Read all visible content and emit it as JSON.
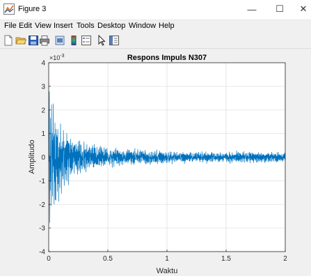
{
  "window": {
    "title": "Figure 3",
    "buttons": {
      "minimize": "—",
      "maximize": "☐",
      "close": "✕"
    }
  },
  "menu": {
    "items": [
      {
        "label": "File"
      },
      {
        "label": "Edit"
      },
      {
        "label": "View"
      },
      {
        "label": "Insert"
      },
      {
        "label": "Tools"
      },
      {
        "label": "Desktop"
      },
      {
        "label": "Window"
      },
      {
        "label": "Help"
      }
    ]
  },
  "toolbar": {
    "icons": [
      "new-figure-icon",
      "open-file-icon",
      "save-icon",
      "print-icon",
      "link-plot-icon",
      "colorbar-icon",
      "legend-icon",
      "pointer-icon",
      "property-inspector-icon"
    ]
  },
  "colors": {
    "series": "#0072bd",
    "grid": "#e0e0e0",
    "axes": "#262626"
  },
  "chart_data": {
    "type": "line",
    "title": "Respons Impuls N307",
    "xlabel": "Waktu",
    "ylabel": "Amplitudo",
    "exponent_label": "×10",
    "exponent_power": "-3",
    "xlim": [
      0,
      2
    ],
    "ylim": [
      -4,
      4
    ],
    "xticks": [
      0,
      0.5,
      1,
      1.5,
      2
    ],
    "xtick_labels": [
      "0",
      "0.5",
      "1",
      "1.5",
      "2"
    ],
    "yticks": [
      -4,
      -3,
      -2,
      -1,
      0,
      1,
      2,
      3,
      4
    ],
    "ytick_labels": [
      "-4",
      "-3",
      "-2",
      "-1",
      "0",
      "1",
      "2",
      "3",
      "4"
    ],
    "grid": true,
    "series": [
      {
        "envelope": {
          "x": [
            0,
            0.02,
            0.05,
            0.1,
            0.15,
            0.2,
            0.3,
            0.4,
            0.5,
            0.6,
            0.8,
            1.0,
            1.2,
            1.5,
            1.8,
            2.0
          ],
          "amplitude": [
            3.6,
            3.3,
            2.4,
            1.9,
            1.3,
            0.95,
            0.7,
            0.55,
            0.5,
            0.4,
            0.35,
            0.3,
            0.28,
            0.27,
            0.26,
            0.25
          ]
        }
      }
    ]
  }
}
